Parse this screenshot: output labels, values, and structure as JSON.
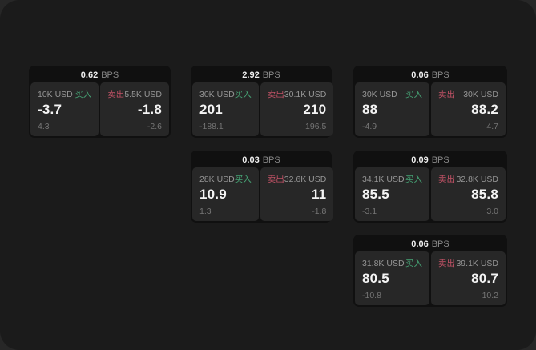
{
  "labels": {
    "buy": "买入",
    "sell": "卖出",
    "bps_unit": "BPS"
  },
  "colors": {
    "buy_green": "#46a475",
    "sell_red": "#c25266",
    "panel_bg": "#1b1b1b",
    "card_bg": "#101010",
    "tile_bg": "#272727"
  },
  "cards": [
    {
      "bps": "0.62",
      "buy": {
        "amount": "10K USD",
        "price": "-3.7",
        "delta": "4.3"
      },
      "sell": {
        "amount": "5.5K USD",
        "price": "-1.8",
        "delta": "-2.6"
      }
    },
    {
      "bps": "2.92",
      "buy": {
        "amount": "30K USD",
        "price": "201",
        "delta": "-188.1"
      },
      "sell": {
        "amount": "30.1K USD",
        "price": "210",
        "delta": "196.5"
      }
    },
    {
      "bps": "0.06",
      "buy": {
        "amount": "30K USD",
        "price": "88",
        "delta": "-4.9"
      },
      "sell": {
        "amount": "30K USD",
        "price": "88.2",
        "delta": "4.7"
      }
    },
    {
      "bps": "0.03",
      "buy": {
        "amount": "28K USD",
        "price": "10.9",
        "delta": "1.3"
      },
      "sell": {
        "amount": "32.6K USD",
        "price": "11",
        "delta": "-1.8"
      }
    },
    {
      "bps": "0.09",
      "buy": {
        "amount": "34.1K USD",
        "price": "85.5",
        "delta": "-3.1"
      },
      "sell": {
        "amount": "32.8K USD",
        "price": "85.8",
        "delta": "3.0"
      }
    },
    {
      "bps": "0.06",
      "buy": {
        "amount": "31.8K USD",
        "price": "80.5",
        "delta": "-10.8"
      },
      "sell": {
        "amount": "39.1K USD",
        "price": "80.7",
        "delta": "10.2"
      }
    }
  ]
}
